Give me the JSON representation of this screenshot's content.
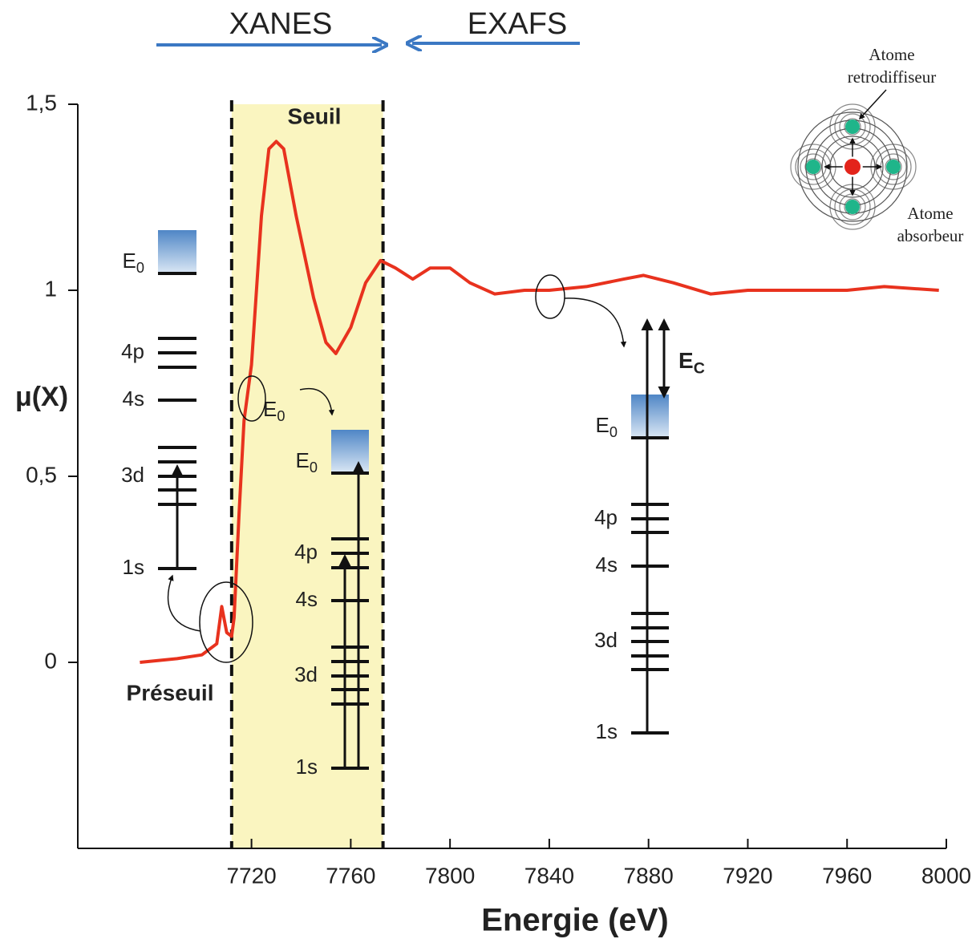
{
  "chart_data": {
    "type": "line",
    "x_label": "Energie (eV)",
    "y_label": "μ(X)",
    "xlim": [
      7650,
      8000
    ],
    "xticks": [
      7720,
      7760,
      7800,
      7840,
      7880,
      7920,
      7960,
      8000
    ],
    "ylim": [
      -0.5,
      1.5
    ],
    "yticks": [
      0,
      {
        "value": 0.5,
        "label": "0,5"
      },
      1,
      {
        "value": 1.5,
        "label": "1,5"
      }
    ],
    "x": [
      7675,
      7690,
      7700,
      7706,
      7708,
      7710,
      7712,
      7713,
      7715,
      7717,
      7720,
      7722,
      7724,
      7727,
      7730,
      7733,
      7738,
      7745,
      7750,
      7754,
      7760,
      7766,
      7772,
      7778,
      7785,
      7792,
      7800,
      7808,
      7818,
      7830,
      7840,
      7855,
      7870,
      7878,
      7890,
      7905,
      7920,
      7960,
      7975,
      7997
    ],
    "series": [
      {
        "color": "#e8321e",
        "values": [
          0.0,
          0.01,
          0.02,
          0.05,
          0.15,
          0.08,
          0.07,
          0.12,
          0.4,
          0.65,
          0.8,
          1.0,
          1.2,
          1.38,
          1.4,
          1.38,
          1.2,
          0.98,
          0.86,
          0.83,
          0.9,
          1.02,
          1.08,
          1.06,
          1.03,
          1.06,
          1.06,
          1.02,
          0.99,
          1.0,
          1.0,
          1.01,
          1.03,
          1.04,
          1.02,
          0.99,
          1.0,
          1.0,
          1.01,
          1.0
        ]
      }
    ],
    "highlight_x": [
      7712,
      7773
    ],
    "highlight_color": "#faf5c0",
    "annotations": {
      "xanes": "XANES",
      "exafs": "EXAFS",
      "seuil": "Seuil",
      "preseuil": "Préseuil",
      "retro": [
        "Atome",
        "retrodiffiseur"
      ],
      "absorbeur": [
        "Atome",
        "absorbeur"
      ],
      "diagrams": [
        {
          "e0": {
            "base": "E",
            "sub": "0"
          },
          "levels": [
            "4p",
            "4s",
            "3d",
            "1s"
          ]
        },
        {
          "e0": {
            "base": "E",
            "sub": "0"
          },
          "levels": [
            "4p",
            "4s",
            "3d",
            "1s"
          ]
        },
        {
          "e0": {
            "base": "E",
            "sub": "0"
          },
          "levels": [
            "4p",
            "4s",
            "3d",
            "1s"
          ],
          "ec": {
            "base": "E",
            "sub": "C"
          }
        }
      ],
      "edge_e0": {
        "base": "E",
        "sub": "0"
      }
    }
  }
}
